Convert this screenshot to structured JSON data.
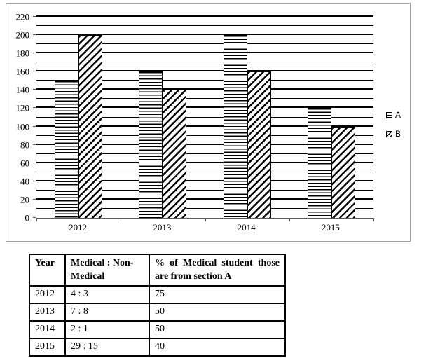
{
  "chart_data": {
    "type": "bar",
    "categories": [
      "2012",
      "2013",
      "2014",
      "2015"
    ],
    "series": [
      {
        "name": "A",
        "pattern": "hlines",
        "values": [
          150,
          160,
          200,
          120
        ]
      },
      {
        "name": "B",
        "pattern": "diag",
        "values": [
          200,
          140,
          160,
          100
        ]
      }
    ],
    "ylim": [
      0,
      220
    ],
    "ytick_major": 20,
    "ytick_minor": 10,
    "grid": true,
    "legend_position": "right",
    "legend_labels": [
      "A",
      "B"
    ],
    "colors": {
      "bar_outline": "#000000",
      "gridline": "#000000",
      "frame_border": "#9d9d9d"
    }
  },
  "table": {
    "headers": [
      "Year",
      "Medical : Non-Medical",
      "% of Medical student those are from section A"
    ],
    "rows": [
      [
        "2012",
        "4 : 3",
        "75"
      ],
      [
        "2013",
        "7 : 8",
        "50"
      ],
      [
        "2014",
        "2 : 1",
        "50"
      ],
      [
        "2015",
        "29 : 15",
        "40"
      ]
    ]
  }
}
